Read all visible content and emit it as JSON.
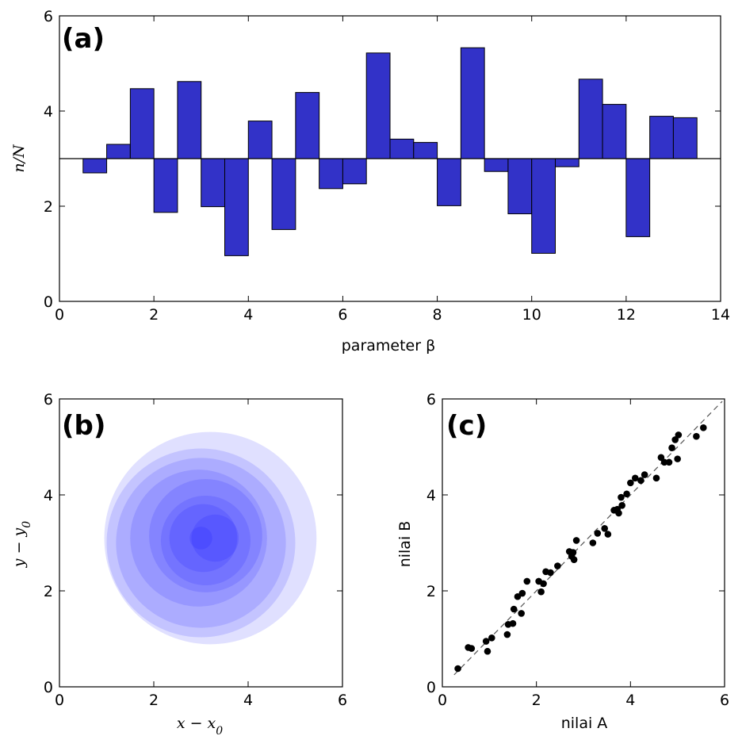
{
  "chart_data": [
    {
      "panel": "a",
      "type": "bar",
      "panel_label": "(a)",
      "xlabel": "parameter β",
      "ylabel": "n/N",
      "xlim": [
        0,
        14
      ],
      "ylim": [
        0,
        6
      ],
      "xticks": [
        "0",
        "2",
        "4",
        "6",
        "8",
        "10",
        "12",
        "14"
      ],
      "yticks": [
        "0",
        "2",
        "4",
        "6"
      ],
      "baseline": 3,
      "bar_width": 0.5,
      "x": [
        0.75,
        1.25,
        1.75,
        2.25,
        2.75,
        3.25,
        3.75,
        4.25,
        4.75,
        5.25,
        5.75,
        6.25,
        6.75,
        7.25,
        7.75,
        8.25,
        8.75,
        9.25,
        9.75,
        10.25,
        10.75,
        11.25,
        11.75,
        12.25,
        12.75,
        13.25
      ],
      "values": [
        2.7,
        3.3,
        4.47,
        1.87,
        4.62,
        1.99,
        0.96,
        3.79,
        1.51,
        4.39,
        2.37,
        2.47,
        5.22,
        3.41,
        3.34,
        2.01,
        5.33,
        2.73,
        1.84,
        1.01,
        2.83,
        4.67,
        4.14,
        1.36,
        3.89,
        3.86
      ],
      "bar_color": "#3232c8",
      "grid": false
    },
    {
      "panel": "b",
      "type": "scatter",
      "panel_label": "(b)",
      "xlabel": "x − x0",
      "ylabel": "y − y0",
      "xlim": [
        0,
        6
      ],
      "ylim": [
        0,
        6
      ],
      "xticks": [
        "0",
        "2",
        "4",
        "6"
      ],
      "yticks": [
        "0",
        "2",
        "4",
        "6"
      ],
      "circles": [
        {
          "x": 3.2,
          "y": 3.1,
          "r": 2.25
        },
        {
          "x": 3.0,
          "y": 3.0,
          "r": 2.0
        },
        {
          "x": 3.0,
          "y": 3.0,
          "r": 1.8
        },
        {
          "x": 2.95,
          "y": 3.1,
          "r": 1.45
        },
        {
          "x": 3.1,
          "y": 3.15,
          "r": 1.2
        },
        {
          "x": 3.1,
          "y": 3.05,
          "r": 0.95
        },
        {
          "x": 3.05,
          "y": 3.1,
          "r": 0.72
        },
        {
          "x": 3.3,
          "y": 3.1,
          "r": 0.5
        },
        {
          "x": 3.0,
          "y": 3.1,
          "r": 0.24
        }
      ],
      "fill_color": "#0000ff",
      "fill_alpha": 0.12,
      "grid": false
    },
    {
      "panel": "c",
      "type": "scatter",
      "panel_label": "(c)",
      "xlabel": "nilai A",
      "ylabel": "nilai B",
      "xlim": [
        0,
        6
      ],
      "ylim": [
        0,
        6
      ],
      "xticks": [
        "0",
        "2",
        "4",
        "6"
      ],
      "yticks": [
        "0",
        "2",
        "4",
        "6"
      ],
      "points": [
        [
          0.33,
          0.38
        ],
        [
          0.55,
          0.82
        ],
        [
          0.62,
          0.8
        ],
        [
          0.93,
          0.95
        ],
        [
          0.96,
          0.74
        ],
        [
          1.05,
          1.02
        ],
        [
          1.38,
          1.09
        ],
        [
          1.4,
          1.3
        ],
        [
          1.5,
          1.32
        ],
        [
          1.52,
          1.62
        ],
        [
          1.6,
          1.88
        ],
        [
          1.68,
          1.53
        ],
        [
          1.7,
          1.95
        ],
        [
          1.8,
          2.2
        ],
        [
          2.05,
          2.2
        ],
        [
          2.1,
          1.98
        ],
        [
          2.15,
          2.15
        ],
        [
          2.2,
          2.4
        ],
        [
          2.3,
          2.38
        ],
        [
          2.45,
          2.52
        ],
        [
          2.7,
          2.82
        ],
        [
          2.75,
          2.72
        ],
        [
          2.78,
          2.8
        ],
        [
          2.8,
          2.65
        ],
        [
          2.85,
          3.05
        ],
        [
          3.2,
          3.0
        ],
        [
          3.3,
          3.2
        ],
        [
          3.45,
          3.3
        ],
        [
          3.52,
          3.18
        ],
        [
          3.65,
          3.68
        ],
        [
          3.72,
          3.7
        ],
        [
          3.75,
          3.62
        ],
        [
          3.8,
          3.95
        ],
        [
          3.82,
          3.78
        ],
        [
          3.92,
          4.02
        ],
        [
          4.0,
          4.25
        ],
        [
          4.1,
          4.35
        ],
        [
          4.22,
          4.3
        ],
        [
          4.3,
          4.42
        ],
        [
          4.55,
          4.35
        ],
        [
          4.65,
          4.78
        ],
        [
          4.72,
          4.68
        ],
        [
          4.82,
          4.68
        ],
        [
          4.88,
          4.98
        ],
        [
          4.95,
          5.15
        ],
        [
          5.0,
          4.75
        ],
        [
          5.02,
          5.25
        ],
        [
          5.4,
          5.22
        ],
        [
          5.55,
          5.4
        ]
      ],
      "reference_line": {
        "x": [
          0.25,
          5.95
        ],
        "y": [
          0.25,
          5.95
        ],
        "style": "dashed"
      },
      "point_color": "#000000",
      "grid": false
    }
  ]
}
